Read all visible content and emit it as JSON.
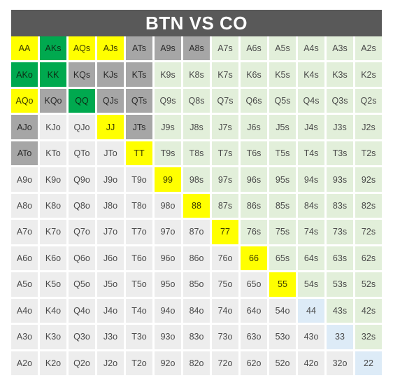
{
  "chart_data": {
    "type": "heatmap",
    "title": "BTN VS CO",
    "ranks": [
      "A",
      "K",
      "Q",
      "J",
      "T",
      "9",
      "8",
      "7",
      "6",
      "5",
      "4",
      "3",
      "2"
    ],
    "legend_colors": {
      "yellow": "#ffff00",
      "green": "#00a94f",
      "gray": "#a6a6a6",
      "light_green": "#e2efda",
      "light_gray": "#ededed",
      "light_blue": "#ddebf7"
    },
    "rows": [
      {
        "hands": [
          "AA",
          "AKs",
          "AQs",
          "AJs",
          "ATs",
          "A9s",
          "A8s",
          "A7s",
          "A6s",
          "A5s",
          "A4s",
          "A3s",
          "A2s"
        ],
        "colors": [
          "yellow",
          "green",
          "yellow",
          "yellow",
          "gray",
          "gray",
          "gray",
          "light_green",
          "light_green",
          "light_green",
          "light_green",
          "light_green",
          "light_green"
        ]
      },
      {
        "hands": [
          "AKo",
          "KK",
          "KQs",
          "KJs",
          "KTs",
          "K9s",
          "K8s",
          "K7s",
          "K6s",
          "K5s",
          "K4s",
          "K3s",
          "K2s"
        ],
        "colors": [
          "green",
          "green",
          "gray",
          "gray",
          "gray",
          "light_green",
          "light_green",
          "light_green",
          "light_green",
          "light_green",
          "light_green",
          "light_green",
          "light_green"
        ]
      },
      {
        "hands": [
          "AQo",
          "KQo",
          "QQ",
          "QJs",
          "QTs",
          "Q9s",
          "Q8s",
          "Q7s",
          "Q6s",
          "Q5s",
          "Q4s",
          "Q3s",
          "Q2s"
        ],
        "colors": [
          "yellow",
          "gray",
          "green",
          "gray",
          "gray",
          "light_green",
          "light_green",
          "light_green",
          "light_green",
          "light_green",
          "light_green",
          "light_green",
          "light_green"
        ]
      },
      {
        "hands": [
          "AJo",
          "KJo",
          "QJo",
          "JJ",
          "JTs",
          "J9s",
          "J8s",
          "J7s",
          "J6s",
          "J5s",
          "J4s",
          "J3s",
          "J2s"
        ],
        "colors": [
          "gray",
          "light_gray",
          "light_gray",
          "yellow",
          "gray",
          "light_green",
          "light_green",
          "light_green",
          "light_green",
          "light_green",
          "light_green",
          "light_green",
          "light_green"
        ]
      },
      {
        "hands": [
          "ATo",
          "KTo",
          "QTo",
          "JTo",
          "TT",
          "T9s",
          "T8s",
          "T7s",
          "T6s",
          "T5s",
          "T4s",
          "T3s",
          "T2s"
        ],
        "colors": [
          "gray",
          "light_gray",
          "light_gray",
          "light_gray",
          "yellow",
          "light_green",
          "light_green",
          "light_green",
          "light_green",
          "light_green",
          "light_green",
          "light_green",
          "light_green"
        ]
      },
      {
        "hands": [
          "A9o",
          "K9o",
          "Q9o",
          "J9o",
          "T9o",
          "99",
          "98s",
          "97s",
          "96s",
          "95s",
          "94s",
          "93s",
          "92s"
        ],
        "colors": [
          "light_gray",
          "light_gray",
          "light_gray",
          "light_gray",
          "light_gray",
          "yellow",
          "light_green",
          "light_green",
          "light_green",
          "light_green",
          "light_green",
          "light_green",
          "light_green"
        ]
      },
      {
        "hands": [
          "A8o",
          "K8o",
          "Q8o",
          "J8o",
          "T8o",
          "98o",
          "88",
          "87s",
          "86s",
          "85s",
          "84s",
          "83s",
          "82s"
        ],
        "colors": [
          "light_gray",
          "light_gray",
          "light_gray",
          "light_gray",
          "light_gray",
          "light_gray",
          "yellow",
          "light_green",
          "light_green",
          "light_green",
          "light_green",
          "light_green",
          "light_green"
        ]
      },
      {
        "hands": [
          "A7o",
          "K7o",
          "Q7o",
          "J7o",
          "T7o",
          "97o",
          "87o",
          "77",
          "76s",
          "75s",
          "74s",
          "73s",
          "72s"
        ],
        "colors": [
          "light_gray",
          "light_gray",
          "light_gray",
          "light_gray",
          "light_gray",
          "light_gray",
          "light_gray",
          "yellow",
          "light_green",
          "light_green",
          "light_green",
          "light_green",
          "light_green"
        ]
      },
      {
        "hands": [
          "A6o",
          "K6o",
          "Q6o",
          "J6o",
          "T6o",
          "96o",
          "86o",
          "76o",
          "66",
          "65s",
          "64s",
          "63s",
          "62s"
        ],
        "colors": [
          "light_gray",
          "light_gray",
          "light_gray",
          "light_gray",
          "light_gray",
          "light_gray",
          "light_gray",
          "light_gray",
          "yellow",
          "light_green",
          "light_green",
          "light_green",
          "light_green"
        ]
      },
      {
        "hands": [
          "A5o",
          "K5o",
          "Q5o",
          "J5o",
          "T5o",
          "95o",
          "85o",
          "75o",
          "65o",
          "55",
          "54s",
          "53s",
          "52s"
        ],
        "colors": [
          "light_gray",
          "light_gray",
          "light_gray",
          "light_gray",
          "light_gray",
          "light_gray",
          "light_gray",
          "light_gray",
          "light_gray",
          "yellow",
          "light_green",
          "light_green",
          "light_green"
        ]
      },
      {
        "hands": [
          "A4o",
          "K4o",
          "Q4o",
          "J4o",
          "T4o",
          "94o",
          "84o",
          "74o",
          "64o",
          "54o",
          "44",
          "43s",
          "42s"
        ],
        "colors": [
          "light_gray",
          "light_gray",
          "light_gray",
          "light_gray",
          "light_gray",
          "light_gray",
          "light_gray",
          "light_gray",
          "light_gray",
          "light_gray",
          "light_blue",
          "light_green",
          "light_green"
        ]
      },
      {
        "hands": [
          "A3o",
          "K3o",
          "Q3o",
          "J3o",
          "T3o",
          "93o",
          "83o",
          "73o",
          "63o",
          "53o",
          "43o",
          "33",
          "32s"
        ],
        "colors": [
          "light_gray",
          "light_gray",
          "light_gray",
          "light_gray",
          "light_gray",
          "light_gray",
          "light_gray",
          "light_gray",
          "light_gray",
          "light_gray",
          "light_gray",
          "light_blue",
          "light_green"
        ]
      },
      {
        "hands": [
          "A2o",
          "K2o",
          "Q2o",
          "J2o",
          "T2o",
          "92o",
          "82o",
          "72o",
          "62o",
          "52o",
          "42o",
          "32o",
          "22"
        ],
        "colors": [
          "light_gray",
          "light_gray",
          "light_gray",
          "light_gray",
          "light_gray",
          "light_gray",
          "light_gray",
          "light_gray",
          "light_gray",
          "light_gray",
          "light_gray",
          "light_gray",
          "light_blue"
        ]
      }
    ]
  }
}
